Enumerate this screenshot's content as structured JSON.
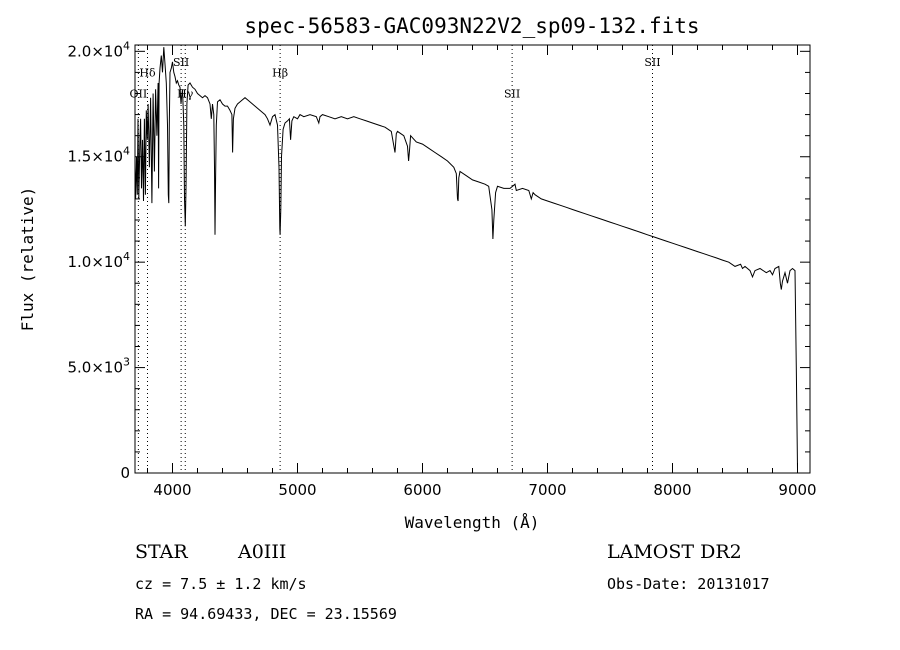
{
  "chart_data": {
    "type": "line",
    "title": "spec-56583-GAC093N22V2_sp09-132.fits",
    "xlabel": "Wavelength (Å)",
    "ylabel": "Flux (relative)",
    "xlim": [
      3700,
      9100
    ],
    "ylim": [
      0,
      20300
    ],
    "x_ticks": [
      4000,
      5000,
      6000,
      7000,
      8000,
      9000
    ],
    "x_tick_labels": [
      "4000",
      "5000",
      "6000",
      "7000",
      "8000",
      "9000"
    ],
    "y_ticks": [
      0,
      5000,
      10000,
      15000,
      20000
    ],
    "y_tick_labels": [
      {
        "mant": "0",
        "exp": ""
      },
      {
        "mant": "5.0×10",
        "exp": "3"
      },
      {
        "mant": "1.0×10",
        "exp": "4"
      },
      {
        "mant": "1.5×10",
        "exp": "4"
      },
      {
        "mant": "2.0×10",
        "exp": "4"
      }
    ],
    "grid": false,
    "line_color": "#000000",
    "line_markers": [
      {
        "label": "OII",
        "x": 3727,
        "label_y": 17800
      },
      {
        "label": "Hδ",
        "x": 3800,
        "label_y": 18800
      },
      {
        "label": "SII",
        "x": 4069,
        "label_y": 19300
      },
      {
        "label": "Hγ",
        "x": 4102,
        "label_y": 17800
      },
      {
        "label": "Hβ",
        "x": 4861,
        "label_y": 18800
      },
      {
        "label": "SII",
        "x": 6717,
        "label_y": 17800
      },
      {
        "label": "SII",
        "x": 7840,
        "label_y": 19300
      }
    ],
    "series": [
      {
        "values": [
          [
            3700,
            14500
          ],
          [
            3705,
            13000
          ],
          [
            3712,
            15000
          ],
          [
            3718,
            13200
          ],
          [
            3724,
            16800
          ],
          [
            3730,
            13000
          ],
          [
            3738,
            15500
          ],
          [
            3745,
            16800
          ],
          [
            3752,
            13500
          ],
          [
            3760,
            15800
          ],
          [
            3768,
            12900
          ],
          [
            3775,
            16800
          ],
          [
            3783,
            13200
          ],
          [
            3790,
            17200
          ],
          [
            3798,
            15800
          ],
          [
            3805,
            17500
          ],
          [
            3815,
            14500
          ],
          [
            3825,
            17800
          ],
          [
            3835,
            12800
          ],
          [
            3845,
            18000
          ],
          [
            3855,
            14300
          ],
          [
            3865,
            18200
          ],
          [
            3875,
            16000
          ],
          [
            3885,
            18500
          ],
          [
            3889,
            13500
          ],
          [
            3893,
            18500
          ],
          [
            3900,
            19200
          ],
          [
            3910,
            19800
          ],
          [
            3920,
            19000
          ],
          [
            3930,
            20200
          ],
          [
            3940,
            19400
          ],
          [
            3950,
            18500
          ],
          [
            3960,
            16500
          ],
          [
            3966,
            13200
          ],
          [
            3970,
            12800
          ],
          [
            3974,
            16500
          ],
          [
            3980,
            19000
          ],
          [
            3990,
            19200
          ],
          [
            4000,
            19500
          ],
          [
            4010,
            19000
          ],
          [
            4020,
            18800
          ],
          [
            4030,
            18500
          ],
          [
            4040,
            18600
          ],
          [
            4050,
            18400
          ],
          [
            4060,
            18300
          ],
          [
            4068,
            17500
          ],
          [
            4072,
            17800
          ],
          [
            4080,
            18200
          ],
          [
            4090,
            16500
          ],
          [
            4096,
            13000
          ],
          [
            4102,
            11700
          ],
          [
            4108,
            13500
          ],
          [
            4115,
            17500
          ],
          [
            4125,
            18400
          ],
          [
            4140,
            18500
          ],
          [
            4160,
            18300
          ],
          [
            4180,
            18200
          ],
          [
            4200,
            18000
          ],
          [
            4220,
            17900
          ],
          [
            4240,
            17800
          ],
          [
            4260,
            17900
          ],
          [
            4280,
            17800
          ],
          [
            4300,
            17500
          ],
          [
            4310,
            16800
          ],
          [
            4320,
            17500
          ],
          [
            4330,
            17000
          ],
          [
            4336,
            14500
          ],
          [
            4340,
            11300
          ],
          [
            4345,
            14000
          ],
          [
            4350,
            16500
          ],
          [
            4360,
            17600
          ],
          [
            4380,
            17700
          ],
          [
            4400,
            17500
          ],
          [
            4420,
            17400
          ],
          [
            4440,
            17400
          ],
          [
            4460,
            17200
          ],
          [
            4475,
            17000
          ],
          [
            4481,
            15200
          ],
          [
            4487,
            16800
          ],
          [
            4500,
            17300
          ],
          [
            4520,
            17500
          ],
          [
            4540,
            17600
          ],
          [
            4560,
            17700
          ],
          [
            4580,
            17800
          ],
          [
            4600,
            17700
          ],
          [
            4620,
            17600
          ],
          [
            4640,
            17500
          ],
          [
            4660,
            17400
          ],
          [
            4680,
            17300
          ],
          [
            4700,
            17200
          ],
          [
            4720,
            17100
          ],
          [
            4740,
            17000
          ],
          [
            4760,
            16800
          ],
          [
            4780,
            16500
          ],
          [
            4800,
            16900
          ],
          [
            4820,
            17000
          ],
          [
            4840,
            16500
          ],
          [
            4852,
            14500
          ],
          [
            4858,
            11600
          ],
          [
            4861,
            11300
          ],
          [
            4866,
            12500
          ],
          [
            4872,
            15000
          ],
          [
            4885,
            16300
          ],
          [
            4900,
            16600
          ],
          [
            4920,
            16700
          ],
          [
            4935,
            16800
          ],
          [
            4945,
            15800
          ],
          [
            4955,
            16700
          ],
          [
            4970,
            16900
          ],
          [
            5000,
            16800
          ],
          [
            5020,
            17000
          ],
          [
            5050,
            16900
          ],
          [
            5100,
            17000
          ],
          [
            5150,
            16900
          ],
          [
            5170,
            16600
          ],
          [
            5180,
            16900
          ],
          [
            5200,
            17000
          ],
          [
            5250,
            16900
          ],
          [
            5300,
            16800
          ],
          [
            5350,
            16900
          ],
          [
            5400,
            16800
          ],
          [
            5450,
            16900
          ],
          [
            5500,
            16800
          ],
          [
            5550,
            16700
          ],
          [
            5600,
            16600
          ],
          [
            5650,
            16500
          ],
          [
            5700,
            16400
          ],
          [
            5750,
            16200
          ],
          [
            5780,
            15200
          ],
          [
            5790,
            16100
          ],
          [
            5800,
            16200
          ],
          [
            5850,
            16000
          ],
          [
            5880,
            15500
          ],
          [
            5889,
            14800
          ],
          [
            5896,
            15300
          ],
          [
            5905,
            16000
          ],
          [
            5950,
            15700
          ],
          [
            6000,
            15600
          ],
          [
            6050,
            15400
          ],
          [
            6100,
            15200
          ],
          [
            6150,
            15000
          ],
          [
            6200,
            14800
          ],
          [
            6250,
            14500
          ],
          [
            6270,
            14200
          ],
          [
            6280,
            13000
          ],
          [
            6285,
            12900
          ],
          [
            6290,
            14000
          ],
          [
            6300,
            14300
          ],
          [
            6350,
            14100
          ],
          [
            6400,
            13900
          ],
          [
            6450,
            13800
          ],
          [
            6500,
            13700
          ],
          [
            6530,
            13600
          ],
          [
            6555,
            12500
          ],
          [
            6563,
            11100
          ],
          [
            6570,
            12000
          ],
          [
            6585,
            13300
          ],
          [
            6600,
            13600
          ],
          [
            6650,
            13500
          ],
          [
            6700,
            13500
          ],
          [
            6740,
            13700
          ],
          [
            6750,
            13400
          ],
          [
            6800,
            13500
          ],
          [
            6850,
            13400
          ],
          [
            6870,
            13000
          ],
          [
            6885,
            13300
          ],
          [
            6900,
            13200
          ],
          [
            6950,
            13000
          ],
          [
            7000,
            12900
          ],
          [
            7050,
            12800
          ],
          [
            7100,
            12700
          ],
          [
            7150,
            12600
          ],
          [
            7200,
            12500
          ],
          [
            7250,
            12400
          ],
          [
            7300,
            12300
          ],
          [
            7350,
            12200
          ],
          [
            7400,
            12100
          ],
          [
            7450,
            12000
          ],
          [
            7500,
            11900
          ],
          [
            7550,
            11800
          ],
          [
            7600,
            11700
          ],
          [
            7650,
            11600
          ],
          [
            7700,
            11500
          ],
          [
            7750,
            11400
          ],
          [
            7800,
            11300
          ],
          [
            7850,
            11200
          ],
          [
            7900,
            11100
          ],
          [
            7950,
            11000
          ],
          [
            8000,
            10900
          ],
          [
            8050,
            10800
          ],
          [
            8100,
            10700
          ],
          [
            8150,
            10600
          ],
          [
            8200,
            10500
          ],
          [
            8250,
            10400
          ],
          [
            8300,
            10300
          ],
          [
            8350,
            10200
          ],
          [
            8400,
            10100
          ],
          [
            8450,
            10000
          ],
          [
            8500,
            9800
          ],
          [
            8545,
            9900
          ],
          [
            8560,
            9700
          ],
          [
            8580,
            9800
          ],
          [
            8620,
            9600
          ],
          [
            8640,
            9300
          ],
          [
            8660,
            9600
          ],
          [
            8700,
            9700
          ],
          [
            8750,
            9500
          ],
          [
            8780,
            9600
          ],
          [
            8800,
            9400
          ],
          [
            8820,
            9700
          ],
          [
            8850,
            9800
          ],
          [
            8862,
            9000
          ],
          [
            8870,
            8700
          ],
          [
            8880,
            9100
          ],
          [
            8900,
            9500
          ],
          [
            8920,
            9000
          ],
          [
            8940,
            9600
          ],
          [
            8960,
            9700
          ],
          [
            8980,
            9600
          ],
          [
            8990,
            5000
          ],
          [
            9000,
            200
          ]
        ]
      }
    ]
  },
  "footer": {
    "object_class": "STAR",
    "subclass": "A0III",
    "redshift": "cz = 7.5 ± 1.2 km/s",
    "coords": "RA =  94.69433, DEC =  23.15569",
    "survey": "LAMOST DR2",
    "obs_date": "Obs-Date: 20131017"
  }
}
